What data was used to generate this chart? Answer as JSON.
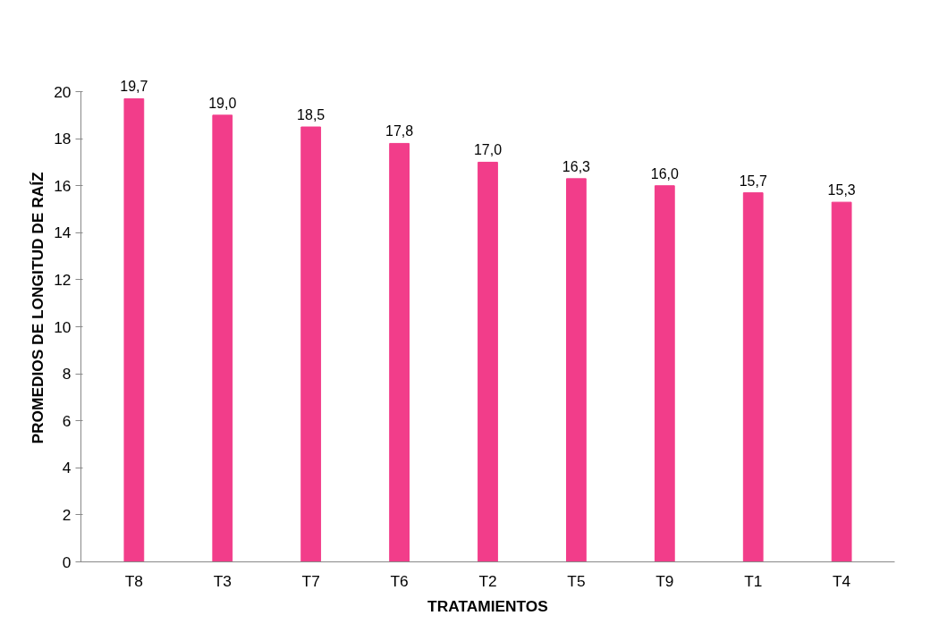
{
  "chart_data": {
    "type": "bar",
    "xlabel": "TRATAMIENTOS",
    "ylabel": "PROMEDIOS DE LONGITUD DE RAÍZ",
    "categories": [
      "T8",
      "T3",
      "T7",
      "T6",
      "T2",
      "T5",
      "T9",
      "T1",
      "T4"
    ],
    "values": [
      19.7,
      19.0,
      18.5,
      17.8,
      17.0,
      16.3,
      16.0,
      15.7,
      15.3
    ],
    "value_labels": [
      "19,7",
      "19,0",
      "18,5",
      "17,8",
      "17,0",
      "16,3",
      "16,0",
      "15,7",
      "15,3"
    ],
    "color": "#f23d8a",
    "ylim": [
      0,
      20
    ],
    "yticks": [
      0,
      2,
      4,
      6,
      8,
      10,
      12,
      14,
      16,
      18,
      20
    ],
    "grid": false
  }
}
